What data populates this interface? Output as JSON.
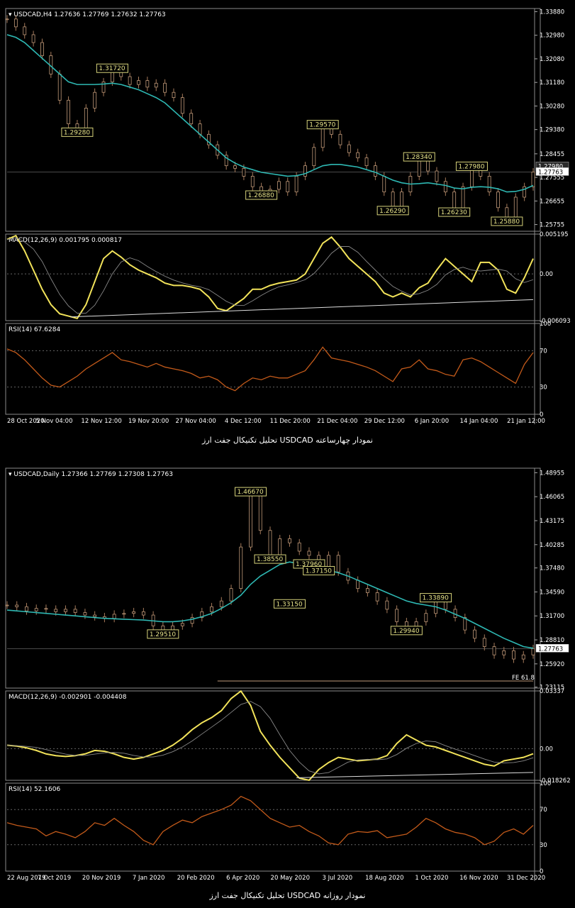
{
  "charts": [
    {
      "header": "USDCAD,H4  1.27636 1.27769 1.27632 1.27763",
      "caption": "تحلیل تکنیکال جفت ارز USDCAD نمودار چهارساعته",
      "price_ticks": [
        "1.33880",
        "1.32980",
        "1.32080",
        "1.31180",
        "1.30280",
        "1.29380",
        "1.28455",
        "1.27555",
        "1.26655",
        "1.25755"
      ],
      "price_badges": [
        "1.27980",
        "1.27763"
      ],
      "annotations": [
        "1.31720",
        "1.29280",
        "1.29570",
        "1.26880",
        "1.28340",
        "1.27980",
        "1.26290",
        "1.26230",
        "1.25880"
      ],
      "macd_label": "MACD(12,26,9) 0.001795 0.000817",
      "macd_ticks": [
        "0.005195",
        "0.00",
        "-0.006093"
      ],
      "rsi_label": "RSI(14) 67.6284",
      "rsi_ticks": [
        "100",
        "70",
        "30",
        "0"
      ],
      "dates": [
        "28 Oct 2020",
        "5 Nov 04:00",
        "12 Nov 12:00",
        "19 Nov 20:00",
        "27 Nov 04:00",
        "4 Dec 12:00",
        "11 Dec 20:00",
        "21 Dec 04:00",
        "29 Dec 12:00",
        "6 Jan 20:00",
        "14 Jan 04:00",
        "21 Jan 12:00"
      ]
    },
    {
      "header": "USDCAD,Daily  1.27366 1.27769 1.27308 1.27763",
      "caption": "تحلیل تکنیکال جفت ارز USDCAD نمودار روزانه",
      "price_ticks": [
        "1.48955",
        "1.46065",
        "1.43175",
        "1.40285",
        "1.37480",
        "1.34590",
        "1.31700",
        "1.28810",
        "1.25920",
        "1.23115"
      ],
      "price_badges": [
        "1.27763"
      ],
      "fe_label": "FE 61.8",
      "annotations": [
        "1.46670",
        "1.38550",
        "1.37960",
        "1.37150",
        "1.33150",
        "1.29510",
        "1.29940",
        "1.33890"
      ],
      "macd_label": "MACD(12,26,9) -0.002901 -0.004408",
      "macd_ticks": [
        "0.03337",
        "0.00",
        "-0.018262"
      ],
      "rsi_label": "RSI(14) 52.1606",
      "rsi_ticks": [
        "100",
        "70",
        "30",
        "0"
      ],
      "dates": [
        "22 Aug 2019",
        "7 Oct 2019",
        "20 Nov 2019",
        "7 Jan 2020",
        "20 Feb 2020",
        "6 Apr 2020",
        "20 May 2020",
        "3 Jul 2020",
        "18 Aug 2020",
        "1 Oct 2020",
        "16 Nov 2020",
        "31 Dec 2020"
      ]
    }
  ],
  "chart_data": [
    {
      "type": "line",
      "symbol": "USDCAD",
      "timeframe": "H4",
      "ylim": [
        1.255,
        1.34
      ],
      "close": [
        1.336,
        1.333,
        1.33,
        1.327,
        1.322,
        1.315,
        1.305,
        1.296,
        1.2928,
        1.302,
        1.308,
        1.312,
        1.3172,
        1.314,
        1.311,
        1.3125,
        1.31,
        1.3115,
        1.308,
        1.306,
        1.3,
        1.296,
        1.292,
        1.288,
        1.284,
        1.28,
        1.279,
        1.276,
        1.272,
        1.2688,
        1.271,
        1.274,
        1.27,
        1.276,
        1.28,
        1.287,
        1.2957,
        1.292,
        1.288,
        1.285,
        1.283,
        1.28,
        1.276,
        1.27,
        1.2629,
        1.27,
        1.276,
        1.2834,
        1.278,
        1.274,
        1.27,
        1.2623,
        1.272,
        1.2798,
        1.276,
        1.27,
        1.264,
        1.2588,
        1.268,
        1.272,
        1.2776
      ],
      "ma": [
        1.33,
        1.329,
        1.327,
        1.324,
        1.321,
        1.318,
        1.315,
        1.312,
        1.311,
        1.311,
        1.311,
        1.3112,
        1.3115,
        1.311,
        1.31,
        1.309,
        1.3075,
        1.306,
        1.304,
        1.301,
        1.298,
        1.295,
        1.292,
        1.289,
        1.286,
        1.283,
        1.281,
        1.2795,
        1.2785,
        1.2775,
        1.277,
        1.2765,
        1.276,
        1.2762,
        1.277,
        1.2785,
        1.28,
        1.2805,
        1.2805,
        1.28,
        1.2795,
        1.2785,
        1.2775,
        1.276,
        1.2745,
        1.2735,
        1.273,
        1.2732,
        1.2735,
        1.273,
        1.2725,
        1.2715,
        1.2712,
        1.2718,
        1.272,
        1.2718,
        1.2712,
        1.27,
        1.2702,
        1.271,
        1.2725
      ],
      "macd": [
        0.0045,
        0.005,
        0.003,
        0.0005,
        -0.002,
        -0.004,
        -0.0052,
        -0.0055,
        -0.0058,
        -0.004,
        -0.001,
        0.002,
        0.003,
        0.0022,
        0.0012,
        0.0005,
        0.0,
        -0.0005,
        -0.0012,
        -0.0015,
        -0.0015,
        -0.0017,
        -0.002,
        -0.003,
        -0.0045,
        -0.0048,
        -0.004,
        -0.0032,
        -0.002,
        -0.002,
        -0.0015,
        -0.0012,
        -0.001,
        -0.0008,
        0.0,
        0.002,
        0.004,
        0.0048,
        0.0035,
        0.002,
        0.001,
        0.0,
        -0.001,
        -0.0025,
        -0.003,
        -0.0025,
        -0.003,
        -0.0018,
        -0.0012,
        0.0005,
        0.002,
        0.001,
        0.0,
        -0.001,
        0.0015,
        0.0015,
        0.0005,
        -0.002,
        -0.0025,
        -0.0005,
        0.002
      ],
      "rsi": [
        72,
        68,
        60,
        50,
        40,
        32,
        30,
        36,
        42,
        50,
        56,
        62,
        68,
        60,
        58,
        55,
        52,
        56,
        52,
        50,
        48,
        45,
        40,
        42,
        38,
        30,
        26,
        34,
        40,
        38,
        42,
        40,
        40,
        44,
        48,
        60,
        74,
        62,
        60,
        58,
        55,
        52,
        48,
        42,
        36,
        50,
        52,
        60,
        50,
        48,
        44,
        42,
        60,
        62,
        58,
        52,
        46,
        40,
        34,
        55,
        68
      ]
    },
    {
      "type": "line",
      "symbol": "USDCAD",
      "timeframe": "Daily",
      "ylim": [
        1.23,
        1.495
      ],
      "close": [
        1.33,
        1.328,
        1.323,
        1.326,
        1.325,
        1.322,
        1.325,
        1.321,
        1.318,
        1.316,
        1.314,
        1.319,
        1.32,
        1.322,
        1.318,
        1.305,
        1.2951,
        1.305,
        1.308,
        1.315,
        1.322,
        1.328,
        1.335,
        1.35,
        1.4,
        1.4667,
        1.42,
        1.3855,
        1.41,
        1.405,
        1.395,
        1.39,
        1.3715,
        1.39,
        1.37,
        1.36,
        1.35,
        1.345,
        1.335,
        1.325,
        1.31,
        1.2994,
        1.31,
        1.32,
        1.3389,
        1.325,
        1.315,
        1.3,
        1.29,
        1.28,
        1.27,
        1.275,
        1.265,
        1.27,
        1.2776
      ],
      "ma": [
        1.324,
        1.323,
        1.322,
        1.321,
        1.32,
        1.319,
        1.318,
        1.317,
        1.316,
        1.315,
        1.314,
        1.3135,
        1.313,
        1.3125,
        1.312,
        1.311,
        1.31,
        1.31,
        1.311,
        1.313,
        1.316,
        1.32,
        1.326,
        1.333,
        1.342,
        1.355,
        1.365,
        1.372,
        1.379,
        1.382,
        1.38,
        1.377,
        1.374,
        1.372,
        1.369,
        1.365,
        1.36,
        1.355,
        1.35,
        1.345,
        1.34,
        1.335,
        1.332,
        1.33,
        1.328,
        1.324,
        1.319,
        1.314,
        1.308,
        1.302,
        1.296,
        1.29,
        1.285,
        1.28,
        1.278
      ],
      "macd": [
        0.002,
        0.0015,
        0.0005,
        -0.001,
        -0.003,
        -0.004,
        -0.0045,
        -0.004,
        -0.003,
        -0.001,
        -0.0015,
        -0.003,
        -0.005,
        -0.006,
        -0.005,
        -0.003,
        -0.001,
        0.002,
        0.006,
        0.011,
        0.015,
        0.018,
        0.022,
        0.029,
        0.0333,
        0.025,
        0.01,
        0.002,
        -0.005,
        -0.011,
        -0.017,
        -0.0182,
        -0.012,
        -0.008,
        -0.005,
        -0.006,
        -0.007,
        -0.0065,
        -0.006,
        -0.004,
        0.003,
        0.008,
        0.005,
        0.002,
        0.001,
        -0.001,
        -0.003,
        -0.005,
        -0.007,
        -0.009,
        -0.01,
        -0.007,
        -0.006,
        -0.005,
        -0.0029
      ],
      "rsi": [
        55,
        52,
        50,
        48,
        40,
        45,
        42,
        38,
        45,
        55,
        52,
        60,
        52,
        45,
        35,
        30,
        45,
        52,
        58,
        55,
        62,
        66,
        70,
        75,
        85,
        80,
        70,
        60,
        55,
        50,
        52,
        45,
        40,
        32,
        30,
        42,
        45,
        44,
        46,
        38,
        40,
        42,
        50,
        60,
        55,
        48,
        44,
        42,
        38,
        30,
        34,
        44,
        48,
        42,
        52
      ]
    }
  ]
}
